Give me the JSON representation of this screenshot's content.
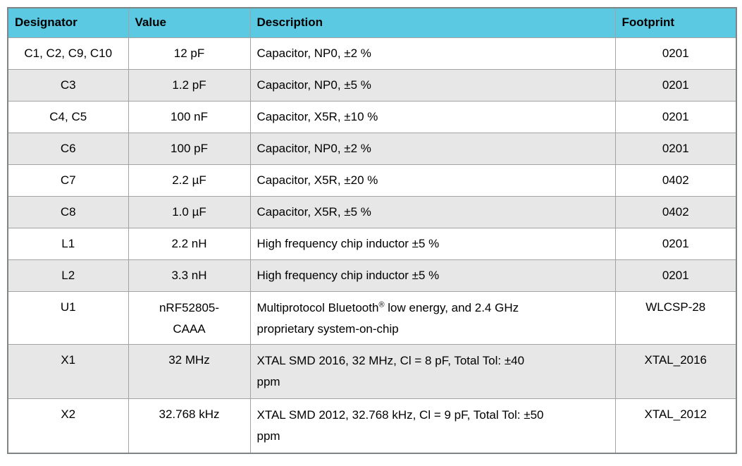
{
  "table": {
    "colors": {
      "header_bg": "#5bc9e2",
      "alt_row_bg": "#e7e7e7",
      "outer_border": "#7f8487",
      "grid_line": "#a3a3a3",
      "text_color": "#000000"
    },
    "columns": [
      {
        "label": "Designator"
      },
      {
        "label": "Value"
      },
      {
        "label": "Description"
      },
      {
        "label": "Footprint"
      }
    ],
    "rows": [
      {
        "designator": "C1, C2, C9, C10",
        "value": "12 pF",
        "description": "Capacitor, NP0, ±2 %",
        "footprint": "0201"
      },
      {
        "designator": "C3",
        "value": "1.2 pF",
        "description": "Capacitor, NP0, ±5 %",
        "footprint": "0201"
      },
      {
        "designator": "C4, C5",
        "value": "100 nF",
        "description": "Capacitor, X5R, ±10 %",
        "footprint": "0201"
      },
      {
        "designator": "C6",
        "value": "100 pF",
        "description": "Capacitor, NP0, ±2 %",
        "footprint": "0201"
      },
      {
        "designator": "C7",
        "value": "2.2 µF",
        "description": "Capacitor, X5R, ±20 %",
        "footprint": "0402"
      },
      {
        "designator": "C8",
        "value": "1.0 µF",
        "description": "Capacitor, X5R, ±5 %",
        "footprint": "0402"
      },
      {
        "designator": "L1",
        "value": "2.2 nH",
        "description": "High frequency chip inductor ±5 %",
        "footprint": "0201"
      },
      {
        "designator": "L2",
        "value": "3.3 nH",
        "description": "High frequency chip inductor ±5 %",
        "footprint": "0201"
      },
      {
        "designator": "U1",
        "value_lines": [
          "nRF52805-",
          "CAAA"
        ],
        "desc_line1_pre": "Multiprotocol Bluetooth",
        "desc_sup": "®",
        "desc_line1_post": " low energy, and 2.4 GHz",
        "desc_line2": "proprietary system-on-chip",
        "footprint": "WLCSP-28"
      },
      {
        "designator": "X1",
        "value": "32 MHz",
        "desc_lines": [
          "XTAL SMD 2016, 32 MHz, Cl = 8 pF, Total Tol: ±40",
          "ppm"
        ],
        "footprint": "XTAL_2016"
      },
      {
        "designator": "X2",
        "value": "32.768 kHz",
        "desc_lines": [
          "XTAL SMD 2012, 32.768 kHz, Cl = 9 pF, Total Tol: ±50",
          "ppm"
        ],
        "footprint": "XTAL_2012"
      }
    ]
  }
}
